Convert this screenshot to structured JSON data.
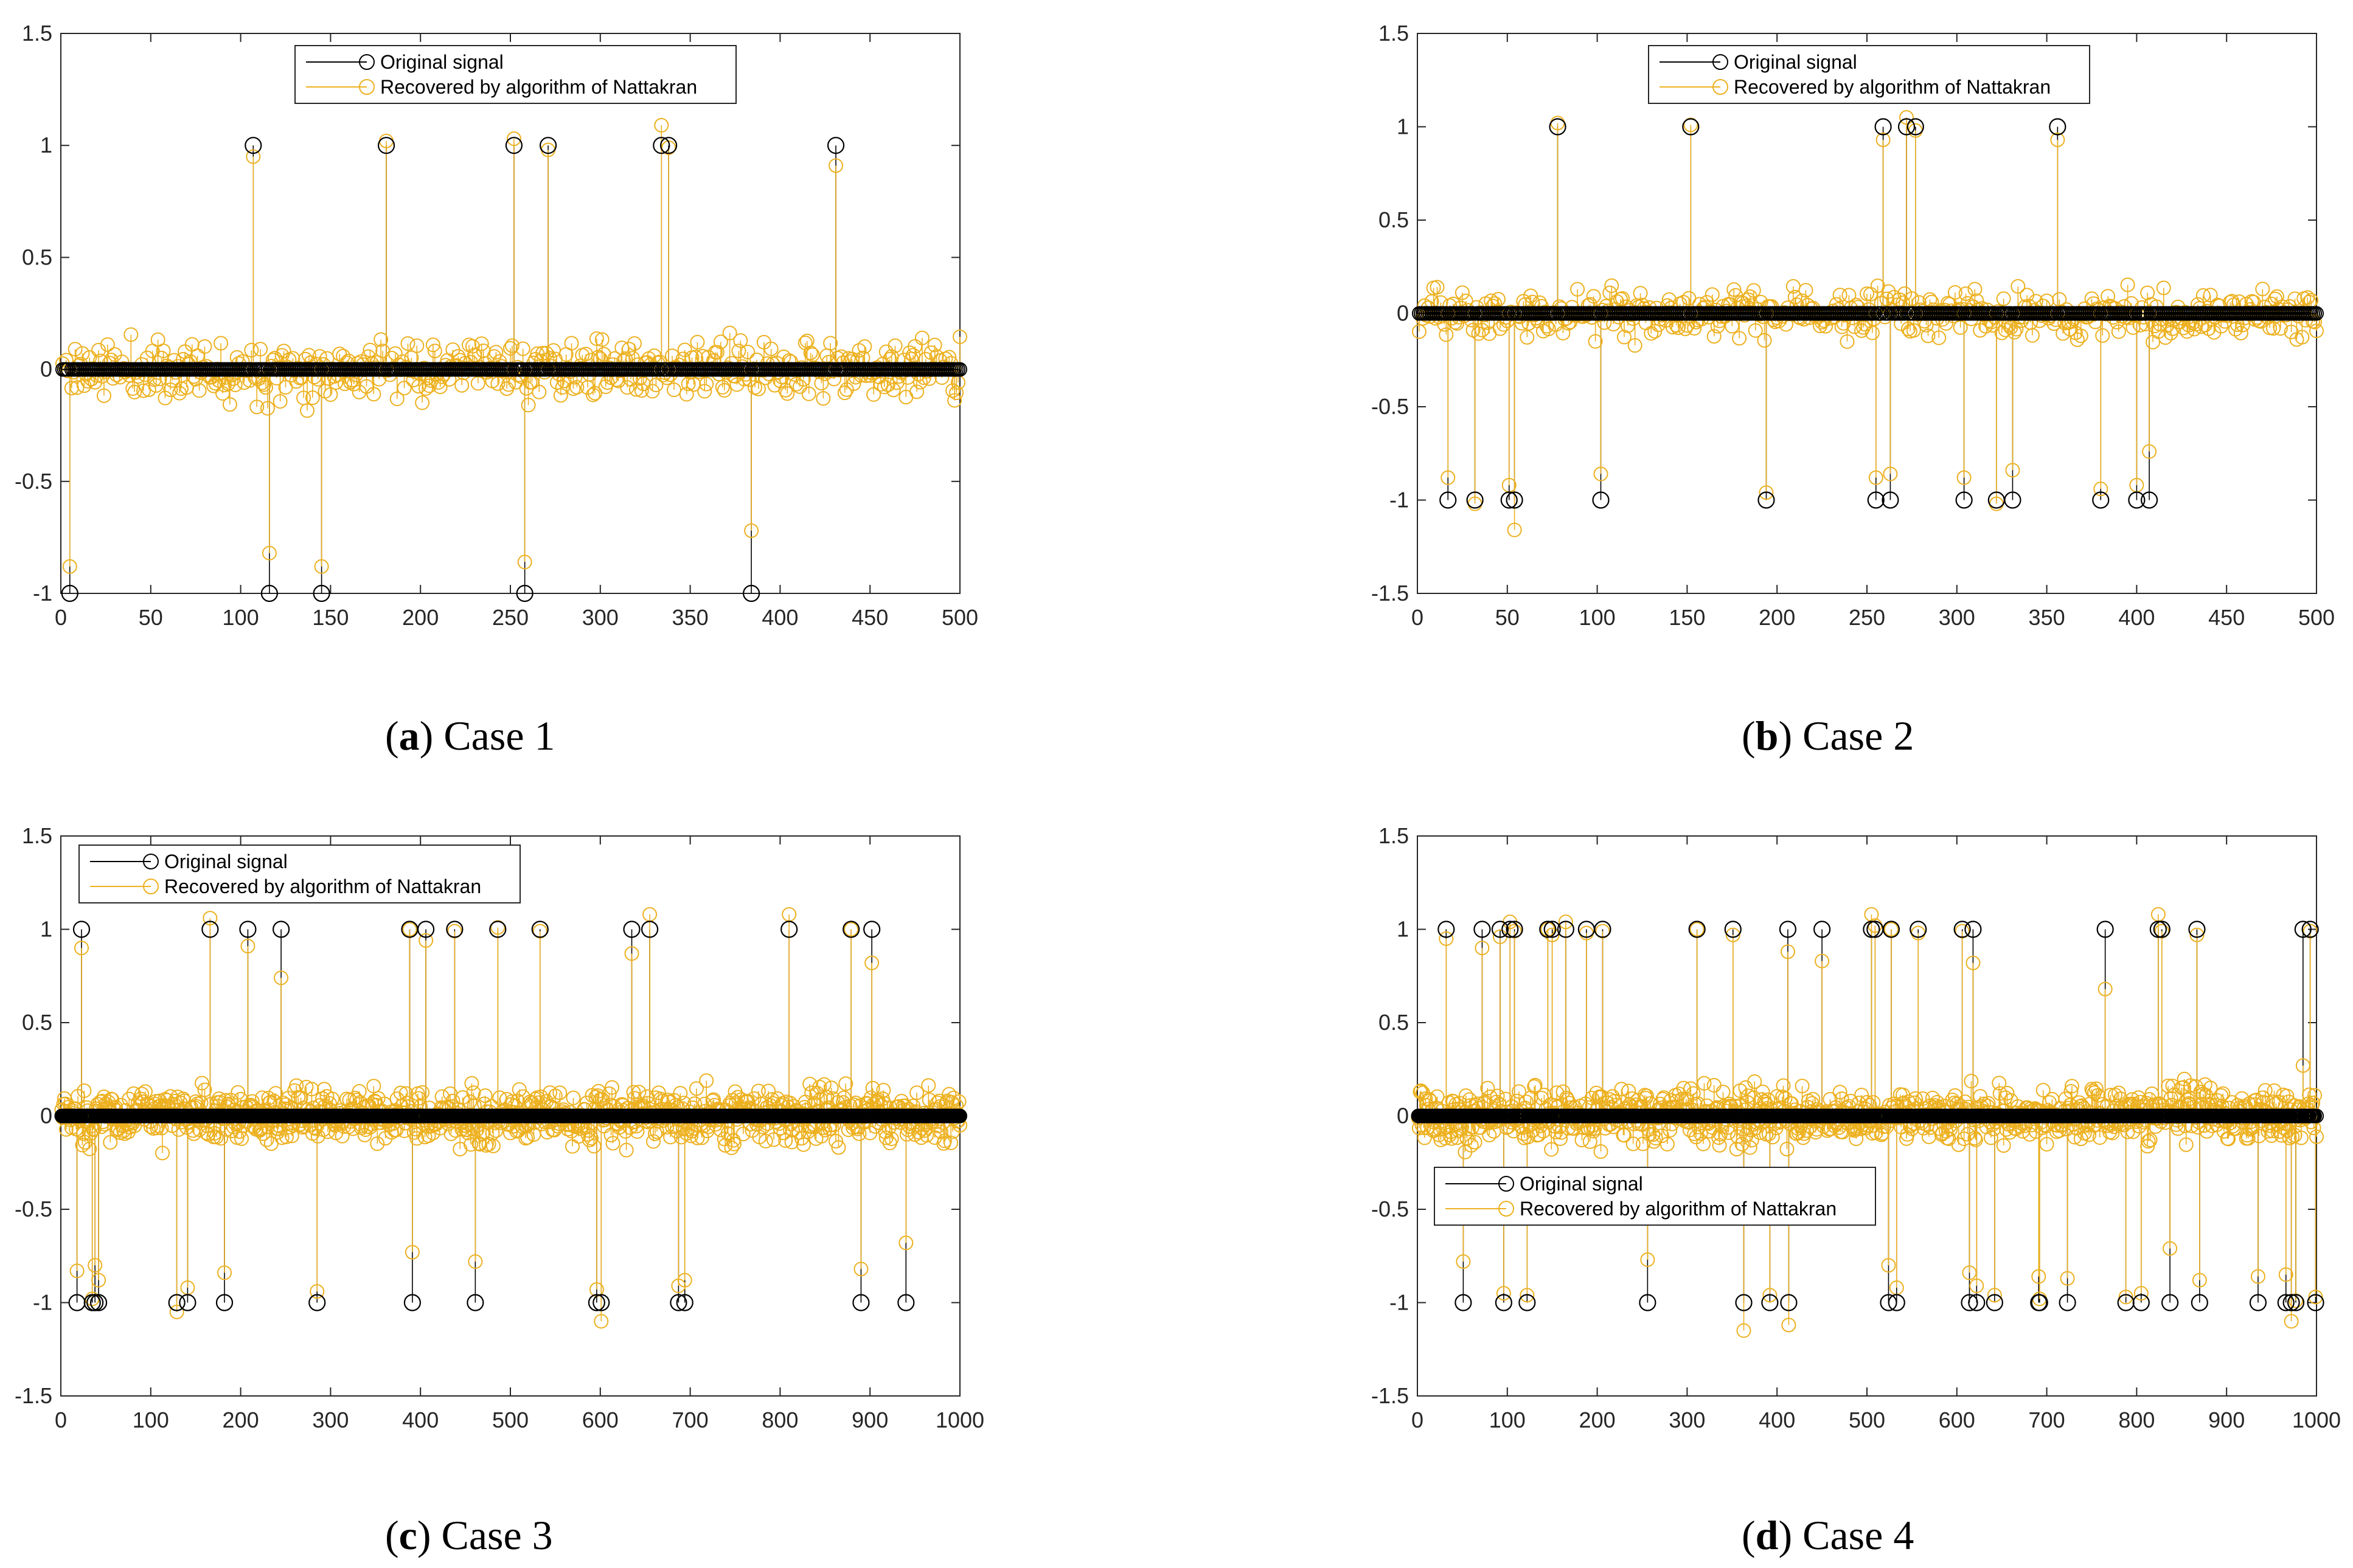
{
  "colors": {
    "original": "#000000",
    "recovered": "#EDB120",
    "axis": "#262626",
    "background": "#ffffff"
  },
  "legend_labels": {
    "original": "Original signal",
    "recovered": "Recovered by algorithm of Nattakran"
  },
  "chart_data": [
    {
      "type": "stem",
      "id": "a",
      "caption_letter": "a",
      "caption_text": " Case 1",
      "n": 500,
      "xlim": [
        0,
        500
      ],
      "ylim": [
        -1,
        1.5
      ],
      "xticks": [
        0,
        50,
        100,
        150,
        200,
        250,
        300,
        350,
        400,
        450,
        500
      ],
      "yticks": [
        -1,
        -0.5,
        0,
        0.5,
        1,
        1.5
      ],
      "legend_position": "top-center",
      "seed": 11,
      "noise": 0.09,
      "series": [
        {
          "name": "Original signal",
          "spikes_x": [
            5,
            107,
            116,
            145,
            181,
            252,
            258,
            271,
            334,
            338,
            384,
            431
          ],
          "spikes_y": [
            -1,
            1,
            -1,
            -1,
            1,
            1,
            -1,
            1,
            1,
            1,
            -1,
            1
          ]
        },
        {
          "name": "Recovered by algorithm of Nattakran",
          "spikes_x": [
            5,
            107,
            116,
            145,
            181,
            252,
            258,
            271,
            334,
            338,
            384,
            431
          ],
          "spikes_y": [
            -0.88,
            0.95,
            -0.82,
            -0.88,
            1.02,
            1.03,
            -0.86,
            0.98,
            1.09,
            0.99,
            -0.72,
            0.91
          ]
        }
      ]
    },
    {
      "type": "stem",
      "id": "b",
      "caption_letter": "b",
      "caption_text": " Case 2",
      "n": 500,
      "xlim": [
        0,
        500
      ],
      "ylim": [
        -1.5,
        1.5
      ],
      "xticks": [
        0,
        50,
        100,
        150,
        200,
        250,
        300,
        350,
        400,
        450,
        500
      ],
      "yticks": [
        -1.5,
        -1,
        -0.5,
        0,
        0.5,
        1,
        1.5
      ],
      "legend_position": "top-center",
      "seed": 23,
      "noise": 0.09,
      "series": [
        {
          "name": "Original signal",
          "spikes_x": [
            17,
            32,
            51,
            54,
            78,
            102,
            152,
            194,
            255,
            259,
            263,
            272,
            277,
            304,
            322,
            331,
            356,
            380,
            400,
            407
          ],
          "spikes_y": [
            -1,
            -1,
            -1,
            -1,
            1,
            -1,
            1,
            -1,
            -1,
            1,
            -1,
            1,
            1,
            -1,
            -1,
            -1,
            1,
            -1,
            -1,
            -1
          ]
        },
        {
          "name": "Recovered by algorithm of Nattakran",
          "spikes_x": [
            17,
            32,
            51,
            54,
            78,
            102,
            152,
            194,
            255,
            259,
            263,
            272,
            277,
            304,
            322,
            331,
            356,
            380,
            400,
            407
          ],
          "spikes_y": [
            -0.88,
            -1.02,
            -0.92,
            -1.16,
            1.02,
            -0.86,
            1.01,
            -0.96,
            -0.88,
            0.93,
            -0.86,
            1.05,
            0.98,
            -0.88,
            -1.02,
            -0.84,
            0.93,
            -0.94,
            -0.92,
            -0.74
          ]
        }
      ]
    },
    {
      "type": "stem",
      "id": "c",
      "caption_letter": "c",
      "caption_text": " Case 3",
      "n": 1000,
      "xlim": [
        0,
        1000
      ],
      "ylim": [
        -1.5,
        1.5
      ],
      "xticks": [
        0,
        100,
        200,
        300,
        400,
        500,
        600,
        700,
        800,
        900,
        1000
      ],
      "yticks": [
        -1.5,
        -1,
        -0.5,
        0,
        0.5,
        1,
        1.5
      ],
      "legend_position": "top-left",
      "seed": 37,
      "noise": 0.1,
      "series": [
        {
          "name": "Original signal",
          "spikes_x": [
            18,
            23,
            35,
            38,
            42,
            129,
            141,
            166,
            182,
            208,
            245,
            285,
            388,
            391,
            406,
            438,
            461,
            486,
            533,
            596,
            601,
            635,
            655,
            687,
            694,
            810,
            879,
            890,
            902,
            940
          ],
          "spikes_y": [
            -1,
            1,
            -1,
            -1,
            -1,
            -1,
            -1,
            1,
            -1,
            1,
            1,
            -1,
            1,
            -1,
            1,
            1,
            -1,
            1,
            1,
            -1,
            -1,
            1,
            1,
            -1,
            -1,
            1,
            1,
            -1,
            1,
            -1
          ]
        },
        {
          "name": "Recovered by algorithm of Nattakran",
          "spikes_x": [
            18,
            23,
            35,
            38,
            42,
            129,
            141,
            166,
            182,
            208,
            245,
            285,
            388,
            391,
            406,
            438,
            461,
            486,
            533,
            596,
            601,
            635,
            655,
            687,
            694,
            810,
            879,
            890,
            902,
            940
          ],
          "spikes_y": [
            -0.83,
            0.9,
            -0.98,
            -0.8,
            -0.88,
            -1.05,
            -0.92,
            1.06,
            -0.84,
            0.91,
            0.74,
            -0.94,
            1.0,
            -0.73,
            0.94,
            0.99,
            -0.78,
            1.01,
            0.99,
            -0.93,
            -1.1,
            0.87,
            1.08,
            -0.91,
            -0.88,
            1.08,
            1.0,
            -0.82,
            0.82,
            -0.68
          ]
        }
      ]
    },
    {
      "type": "stem",
      "id": "d",
      "caption_letter": "d",
      "caption_text": " Case 4",
      "n": 1000,
      "xlim": [
        0,
        1000
      ],
      "ylim": [
        -1.5,
        1.5
      ],
      "xticks": [
        0,
        100,
        200,
        300,
        400,
        500,
        600,
        700,
        800,
        900,
        1000
      ],
      "yticks": [
        -1.5,
        -1,
        -0.5,
        0,
        0.5,
        1,
        1.5
      ],
      "legend_position": "middle-left",
      "seed": 53,
      "noise": 0.1,
      "series": [
        {
          "name": "Original signal",
          "spikes_x": [
            32,
            51,
            72,
            92,
            96,
            103,
            108,
            122,
            145,
            150,
            165,
            188,
            206,
            256,
            311,
            351,
            363,
            392,
            412,
            413,
            450,
            505,
            509,
            524,
            527,
            533,
            557,
            606,
            614,
            618,
            622,
            642,
            691,
            692,
            723,
            765,
            788,
            805,
            824,
            828,
            837,
            867,
            870,
            935,
            966,
            972,
            977,
            985,
            993,
            999
          ],
          "spikes_y": [
            1,
            -1,
            1,
            1,
            -1,
            1,
            1,
            -1,
            1,
            1,
            1,
            1,
            1,
            -1,
            1,
            1,
            -1,
            -1,
            1,
            -1,
            1,
            1,
            1,
            -1,
            1,
            -1,
            1,
            1,
            -1,
            1,
            -1,
            -1,
            -1,
            -1,
            -1,
            1,
            -1,
            -1,
            1,
            1,
            -1,
            1,
            -1,
            -1,
            -1,
            -1,
            -1,
            1,
            1,
            -1
          ]
        },
        {
          "name": "Recovered by algorithm of Nattakran",
          "spikes_x": [
            32,
            51,
            72,
            92,
            96,
            103,
            108,
            122,
            145,
            150,
            165,
            188,
            206,
            256,
            311,
            351,
            363,
            392,
            412,
            413,
            450,
            505,
            509,
            524,
            527,
            533,
            557,
            606,
            614,
            618,
            622,
            642,
            691,
            692,
            723,
            765,
            788,
            805,
            824,
            828,
            837,
            867,
            870,
            935,
            966,
            972,
            977,
            985,
            993,
            999
          ],
          "spikes_y": [
            0.95,
            -0.78,
            0.9,
            0.96,
            -0.95,
            1.04,
            0.99,
            -0.96,
            1.0,
            0.97,
            1.04,
            0.98,
            0.99,
            -0.77,
            1.0,
            0.97,
            -1.15,
            -0.96,
            0.88,
            -1.12,
            0.83,
            1.08,
            1.02,
            -0.8,
            1.0,
            -0.92,
            0.98,
            0.99,
            -0.84,
            0.82,
            -0.91,
            -0.96,
            -0.86,
            -0.98,
            -0.87,
            0.68,
            -0.97,
            -0.95,
            1.08,
            0.99,
            -0.71,
            0.97,
            -0.88,
            -0.86,
            -0.85,
            -1.1,
            -0.99,
            0.27,
            0.99,
            -0.97
          ]
        }
      ]
    }
  ]
}
